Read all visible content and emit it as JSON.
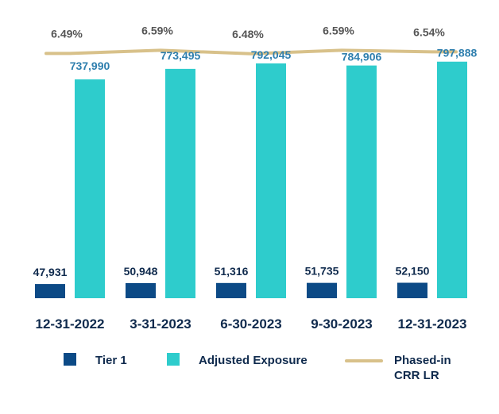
{
  "chart_data": {
    "type": "bar",
    "categories": [
      "12-31-2022",
      "3-31-2023",
      "6-30-2023",
      "9-30-2023",
      "12-31-2023"
    ],
    "series": [
      {
        "name": "Tier 1",
        "kind": "bar",
        "color": "#0c4a86",
        "values": [
          47931,
          50948,
          51316,
          51735,
          52150
        ],
        "labels": [
          "47,931",
          "50,948",
          "51,316",
          "51,735",
          "52,150"
        ]
      },
      {
        "name": "Adjusted Exposure",
        "kind": "bar",
        "color": "#2ecccc",
        "values": [
          737990,
          773495,
          792045,
          784906,
          797888
        ],
        "labels": [
          "737,990",
          "773,495",
          "792,045",
          "784,906",
          "797,888"
        ]
      },
      {
        "name": "Phased-in CRR LR",
        "kind": "line",
        "color": "#d8c18a",
        "values": [
          6.49,
          6.59,
          6.48,
          6.59,
          6.54
        ],
        "labels": [
          "6.49%",
          "6.59%",
          "6.48%",
          "6.59%",
          "6.54%"
        ]
      }
    ],
    "title": "",
    "xlabel": "",
    "ylabel": "",
    "legend": "bottom"
  },
  "legend": {
    "tier1": "Tier 1",
    "exposure": "Adjusted Exposure",
    "lr_line1": "Phased-in",
    "lr_line2": "CRR LR"
  }
}
